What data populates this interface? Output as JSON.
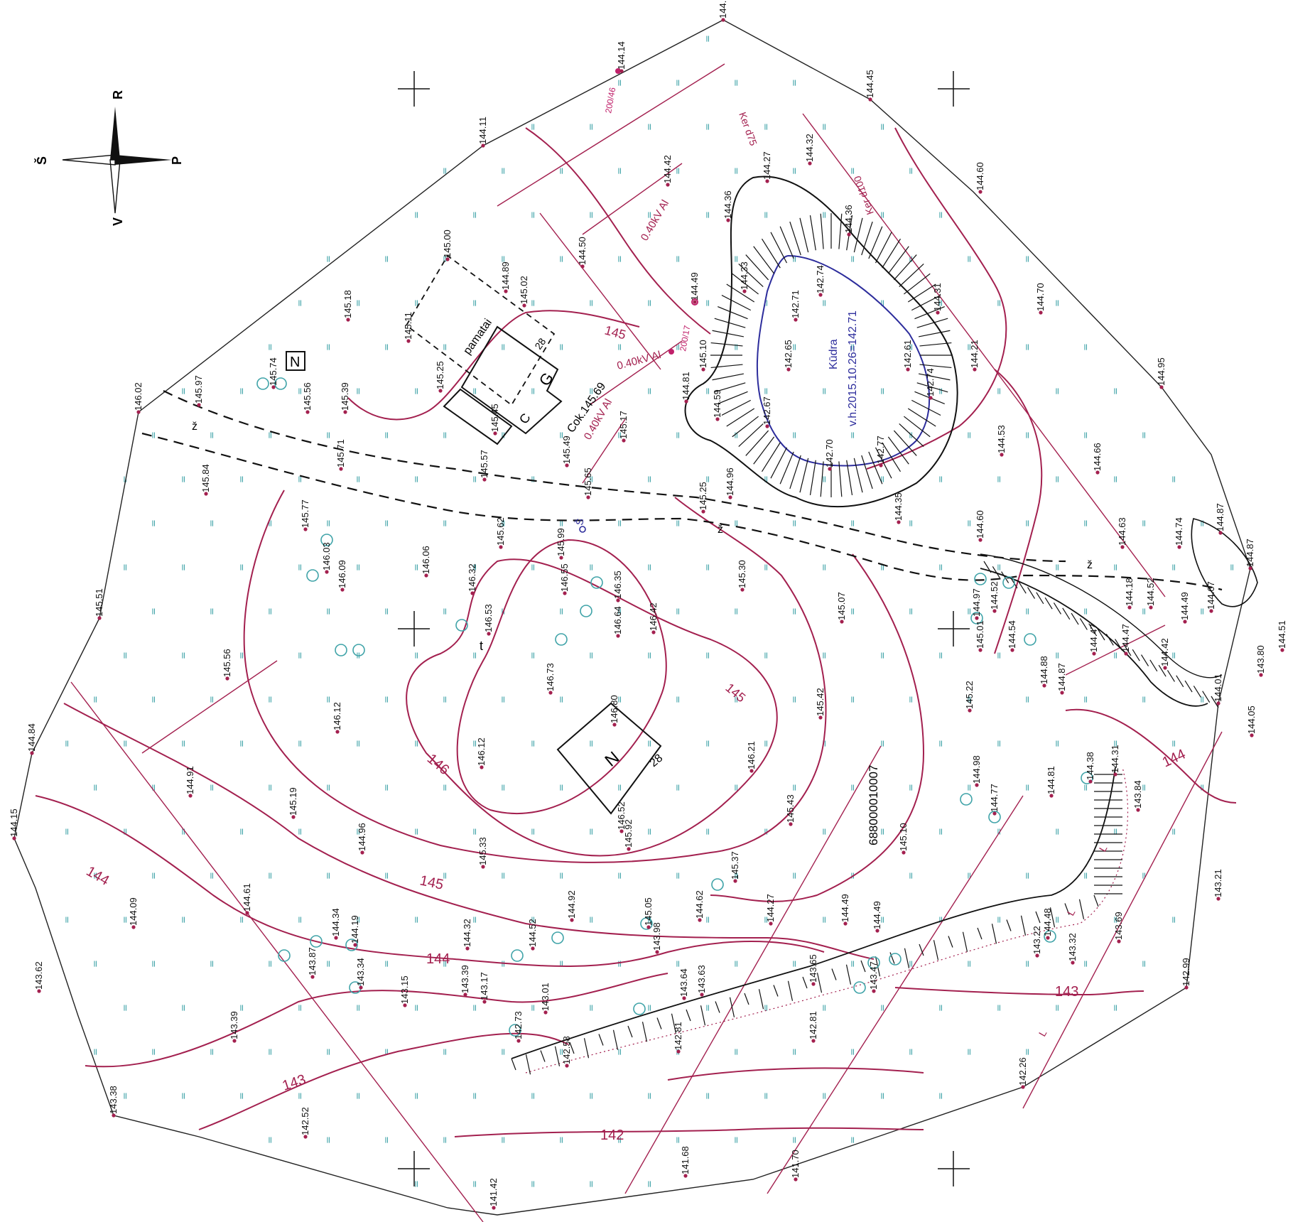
{
  "compass": {
    "north": "Š",
    "south": "P",
    "east": "R",
    "west": "V"
  },
  "colors": {
    "contour": "#a3204f",
    "grass": "#3fa3a8",
    "water": "#2d2d9c",
    "ink": "#111111"
  },
  "pond": {
    "name": "Kūdra",
    "water_level": "v.h.2015.10.26=142.71"
  },
  "buildings": {
    "g_label": "G",
    "g_floors": "28",
    "c_label": "C",
    "cokolis": "Cok.145.69",
    "pamatai": "pamatai",
    "n_label": "N",
    "n_floors": "28",
    "small_n": "N"
  },
  "parcel_id": "688000010007",
  "power_lines": {
    "a": "0.40kV Al",
    "b": "0.40kV Al",
    "c": "0.40kV Al"
  },
  "pipes": {
    "ker75": "Ker d75",
    "ker100": "Ker d100",
    "sign_a": "200/46",
    "sign_b": "200/17",
    "well": "Š"
  },
  "contour_labels": {
    "c146": "146",
    "c145a": "145",
    "c145b": "145",
    "c145c": "145",
    "c144a": "144",
    "c144b": "144",
    "c144c": "144",
    "c143a": "143",
    "c143b": "143",
    "c142": "142"
  },
  "letters": {
    "z": "ž",
    "d": "D",
    "l": "L",
    "t": "t"
  },
  "elevations": [
    "144.13",
    "144.14",
    "144.45",
    "144.11",
    "144.27",
    "144.32",
    "144.42",
    "144.36",
    "144.36",
    "144.60",
    "145.00",
    "144.89",
    "145.02",
    "144.50",
    "144.49",
    "144.33",
    "142.71",
    "142.74",
    "144.31",
    "144.70",
    "145.18",
    "145.11",
    "145.25",
    "145.74",
    "145.56",
    "145.39",
    "145.97",
    "145.45",
    "142.65",
    "142.67",
    "142.61",
    "142.74",
    "144.21",
    "144.95",
    "146.02",
    "145.84",
    "145.71",
    "145.57",
    "145.49",
    "145.17",
    "144.81",
    "145.10",
    "144.59",
    "142.70",
    "142.77",
    "144.53",
    "144.66",
    "145.65",
    "145.25",
    "144.96",
    "144.35",
    "144.60",
    "145.77",
    "146.03",
    "146.09",
    "145.62",
    "145.99",
    "146.06",
    "145.30",
    "144.63",
    "144.74",
    "144.87",
    "145.51",
    "145.56",
    "146.32",
    "146.53",
    "146.55",
    "146.35",
    "146.64",
    "146.42",
    "145.07",
    "144.97",
    "144.52",
    "144.18",
    "144.52",
    "144.49",
    "144.67",
    "144.87",
    "146.73",
    "146.80",
    "145.42",
    "145.01",
    "144.54",
    "144.47",
    "144.47",
    "144.42",
    "144.51",
    "143.80",
    "146.12",
    "146.12",
    "146.21",
    "145.22",
    "144.88",
    "144.87",
    "144.05",
    "144.01",
    "144.84",
    "144.91",
    "145.19",
    "145.43",
    "145.10",
    "144.98",
    "144.77",
    "144.81",
    "144.38",
    "144.31",
    "143.84",
    "144.15",
    "144.96",
    "145.33",
    "146.52",
    "145.92",
    "145.37",
    "144.09",
    "144.61",
    "144.92",
    "145.05",
    "144.62",
    "144.27",
    "144.48",
    "143.21",
    "143.62",
    "144.34",
    "144.19",
    "144.32",
    "144.52",
    "143.98",
    "144.49",
    "144.49",
    "143.69",
    "143.87",
    "143.34",
    "143.15",
    "143.39",
    "143.17",
    "143.01",
    "143.64",
    "143.63",
    "143.65",
    "143.22",
    "143.32",
    "142.99",
    "143.39",
    "142.73",
    "142.81",
    "142.81",
    "143.47",
    "142.58",
    "142.26",
    "143.38",
    "142.52",
    "141.68",
    "141.70",
    "141.42"
  ]
}
